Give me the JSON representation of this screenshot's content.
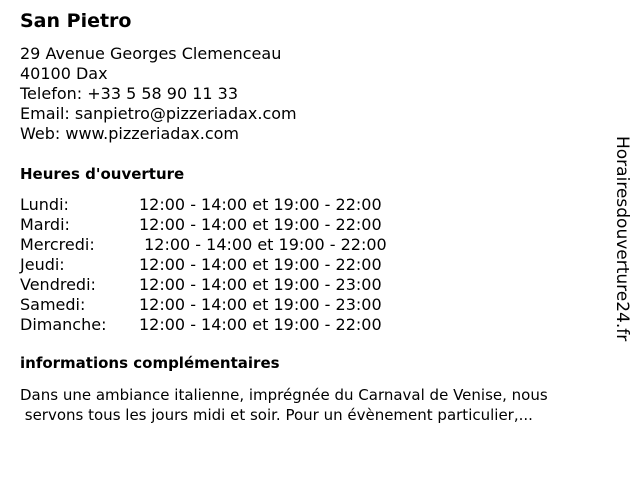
{
  "name": "San Pietro",
  "address": [
    "29 Avenue Georges Clemenceau",
    "40100 Dax",
    "Telefon: +33 5 58 90 11 33",
    "Email: sanpietro@pizzeriadax.com",
    "Web: www.pizzeriadax.com"
  ],
  "hours_title": "Heures d'ouverture",
  "hours": [
    {
      "day": "Lundi:",
      "time": "12:00 - 14:00 et 19:00 - 22:00"
    },
    {
      "day": "Mardi:",
      "time": "12:00 - 14:00 et 19:00 - 22:00"
    },
    {
      "day": "Mercredi:",
      "time": " 12:00 - 14:00 et 19:00 - 22:00"
    },
    {
      "day": "Jeudi:",
      "time": "12:00 - 14:00 et 19:00 - 22:00"
    },
    {
      "day": "Vendredi:",
      "time": "12:00 - 14:00 et 19:00 - 23:00"
    },
    {
      "day": "Samedi:",
      "time": "12:00 - 14:00 et 19:00 - 23:00"
    },
    {
      "day": "Dimanche:",
      "time": "12:00 - 14:00 et 19:00 - 22:00"
    }
  ],
  "info_title": "informations complémentaires",
  "info_lines": [
    "Dans une ambiance italienne, imprégnée du Carnaval de Venise, nous",
    " servons tous les jours midi et soir. Pour un évènement particulier,..."
  ],
  "watermark": "Horairesdouverture24.fr"
}
